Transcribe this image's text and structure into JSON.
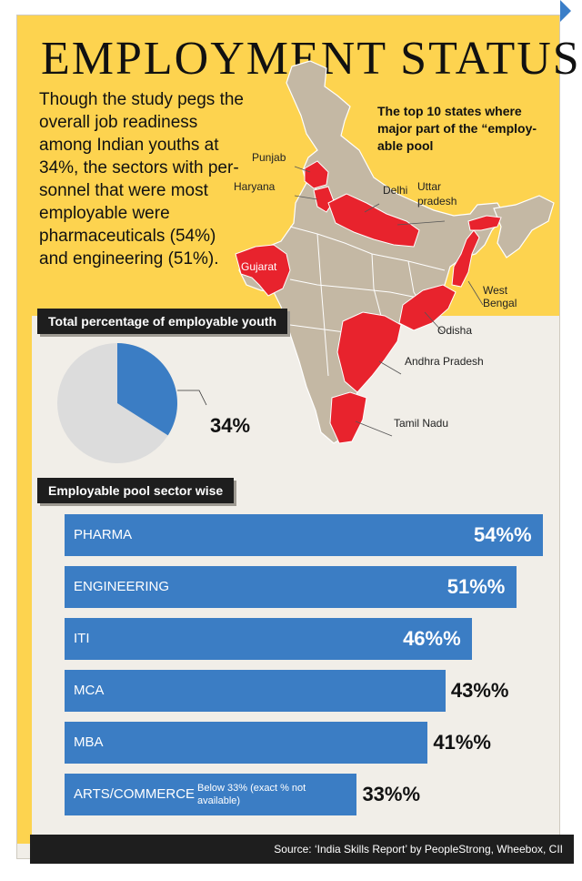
{
  "title": "EMPLOYMENT STATUS",
  "intro": "Though the study pegs the overall job readiness among Indian youths at 34%,  the sectors with per-sonnel that were most employable were pharmaceuticals (54%) and engineering (51%).",
  "map": {
    "caption": "The top 10 states where major part of the “employ-able pool",
    "labels": {
      "punjab": "Punjab",
      "haryana": "Haryana",
      "delhi": "Delhi",
      "uttar_pradesh": "Uttar pradesh",
      "gujarat": "Gujarat",
      "west_bengal": "West Bengal",
      "odisha": "Odisha",
      "andhra_pradesh": "Andhra Pradesh",
      "tamil_nadu": "Tamil Nadu"
    }
  },
  "pie_section": {
    "label": "Total percentage of employable youth",
    "value_label": "34%"
  },
  "bar_section": {
    "label": "Employable pool sector wise"
  },
  "source": "Source: ‘India Skills Report’ by PeopleStrong, Wheebox, CII",
  "colors": {
    "yellow": "#fdd34f",
    "bar_blue": "#3b7dc4",
    "map_highlight": "#e8232d",
    "map_base": "#c4b8a4",
    "pie_rest": "#dcdcdc"
  },
  "chart_data": [
    {
      "type": "pie",
      "title": "Total percentage of employable youth",
      "values": [
        34,
        66
      ],
      "data_labels": [
        "34%"
      ]
    },
    {
      "type": "bar",
      "title": "Employable pool sector wise",
      "orientation": "horizontal",
      "categories": [
        "PHARMA",
        "ENGINEERING",
        "ITI",
        "MCA",
        "MBA",
        "ARTS/COMMERCE"
      ],
      "values": [
        54,
        51,
        46,
        43,
        41,
        33
      ],
      "value_labels": [
        "54%%",
        "51%%",
        "46%%",
        "43%%",
        "41%%",
        "33%%"
      ],
      "notes": [
        "",
        "",
        "",
        "",
        "",
        "Below 33% (exact % not available)"
      ],
      "xlim": [
        0,
        54
      ]
    }
  ]
}
